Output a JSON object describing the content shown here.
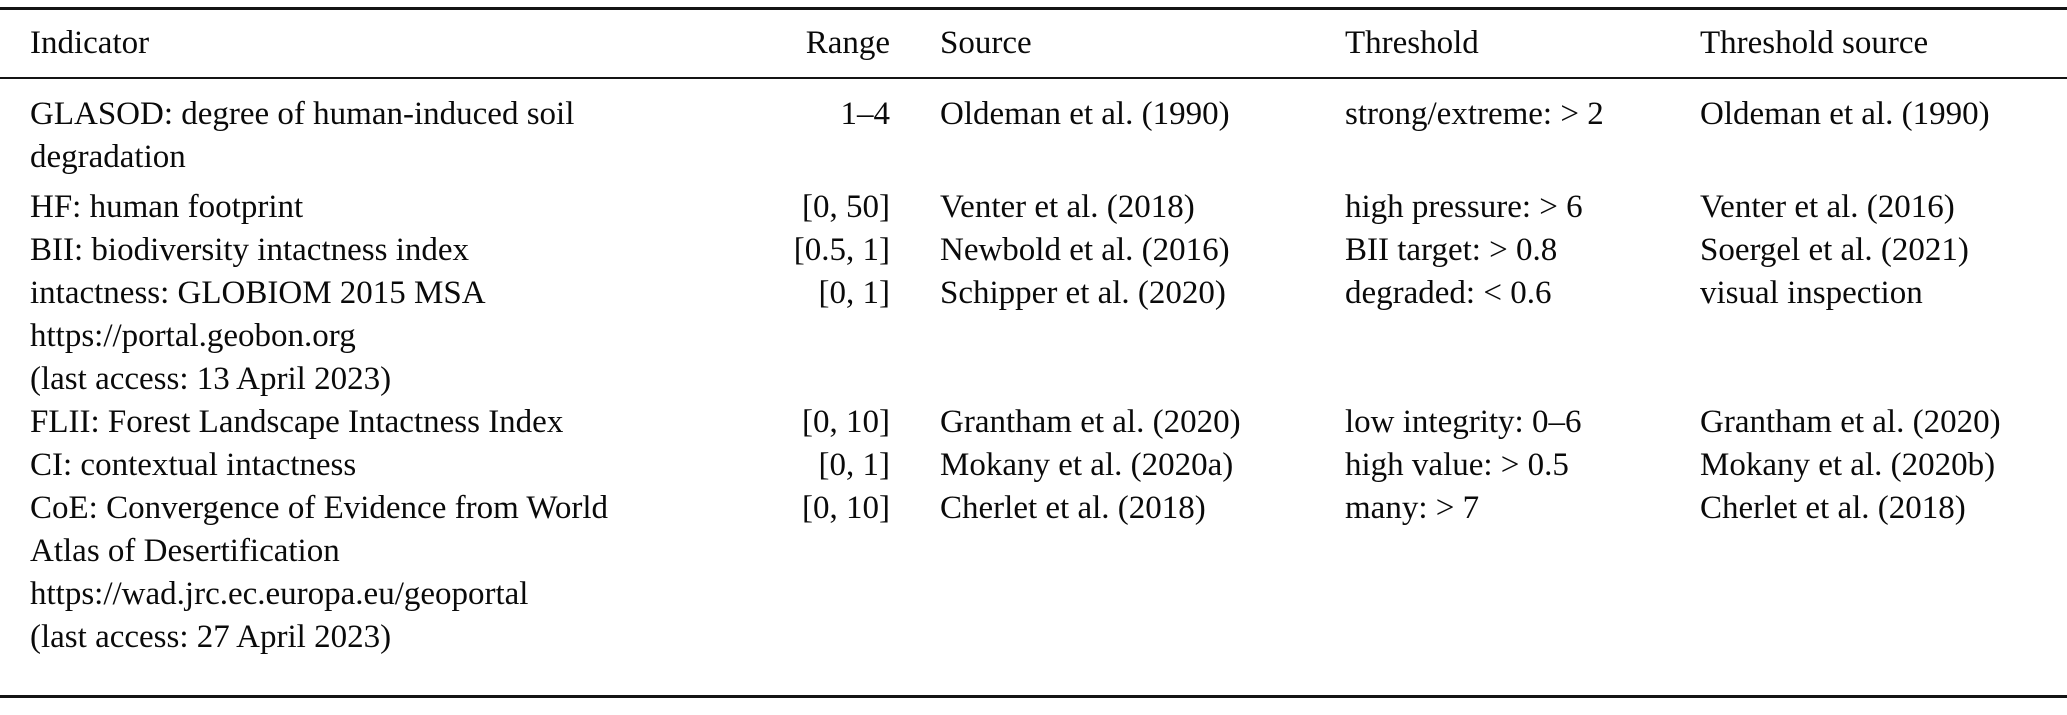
{
  "table": {
    "columns": [
      "Indicator",
      "Range",
      "Source",
      "Threshold",
      "Threshold source"
    ],
    "rows": [
      {
        "indicator": [
          "GLASOD: degree of human-induced soil",
          "degradation"
        ],
        "range": "1–4",
        "source": "Oldeman et al. (1990)",
        "threshold": "strong/extreme: > 2",
        "threshold_source": "Oldeman et al. (1990)"
      },
      {
        "indicator": [
          "HF: human footprint"
        ],
        "range": "[0, 50]",
        "source": "Venter et al. (2018)",
        "threshold": "high pressure: > 6",
        "threshold_source": "Venter et al. (2016)"
      },
      {
        "indicator": [
          "BII: biodiversity intactness index"
        ],
        "range": "[0.5, 1]",
        "source": "Newbold et al. (2016)",
        "threshold": "BII target: > 0.8",
        "threshold_source": "Soergel et al. (2021)"
      },
      {
        "indicator": [
          "intactness: GLOBIOM 2015 MSA",
          "https://portal.geobon.org",
          "(last access: 13 April 2023)"
        ],
        "range": "[0, 1]",
        "source": "Schipper et al. (2020)",
        "threshold": "degraded: < 0.6",
        "threshold_source": "visual inspection"
      },
      {
        "indicator": [
          "FLII: Forest Landscape Intactness Index"
        ],
        "range": "[0, 10]",
        "source": "Grantham et al. (2020)",
        "threshold": "low integrity: 0–6",
        "threshold_source": "Grantham et al. (2020)"
      },
      {
        "indicator": [
          "CI: contextual intactness"
        ],
        "range": "[0, 1]",
        "source": "Mokany et al. (2020a)",
        "threshold": "high value: > 0.5",
        "threshold_source": "Mokany et al. (2020b)"
      },
      {
        "indicator": [
          "CoE: Convergence of Evidence from World",
          "Atlas of Desertification",
          "https://wad.jrc.ec.europa.eu/geoportal",
          "(last access: 27 April 2023)"
        ],
        "range": "[0, 10]",
        "source": "Cherlet et al. (2018)",
        "threshold": "many: > 7",
        "threshold_source": "Cherlet et al. (2018)"
      }
    ],
    "rules_color": "#141414",
    "text_color": "#0a0a0a",
    "background_color": "#ffffff"
  }
}
